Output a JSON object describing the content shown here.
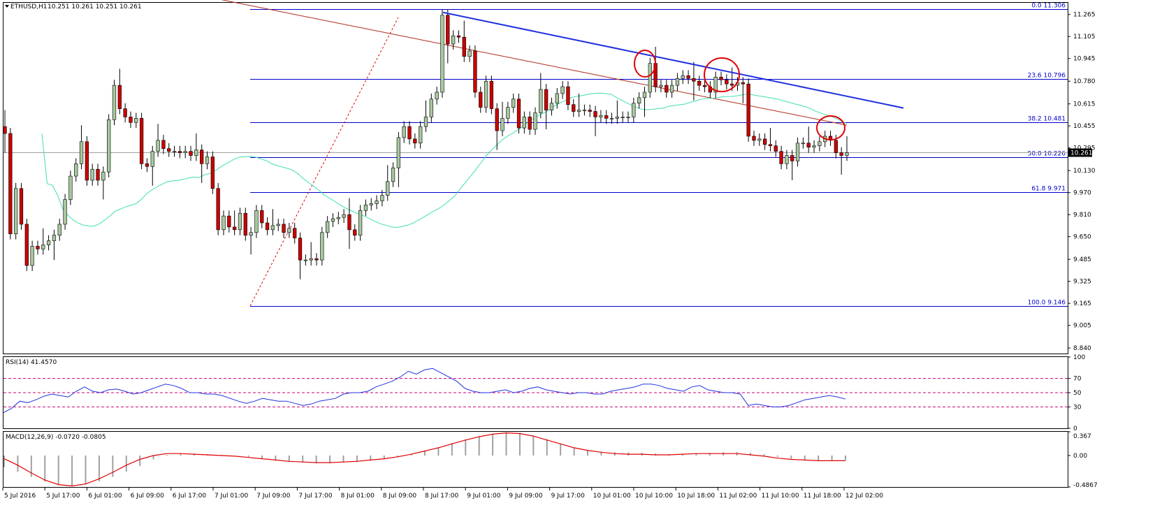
{
  "header": {
    "symbol_label": "ETHUSD,H1",
    "ohlc": "10.251 10.261 10.251 10.261"
  },
  "colors": {
    "bull_candle": "#a8c8a0",
    "bear_candle": "#cc0000",
    "fib_line": "#0000cc",
    "trendline": "#1f2fe0",
    "ma_slow": "#b03020",
    "ma_fast": "#40e0b0",
    "circle": "#e00000",
    "rsi_line": "#2233dd",
    "rsi_level": "#cc0077",
    "macd_hist": "#a0a0a0",
    "macd_signal": "#e00000"
  },
  "chart_data": [
    {
      "type": "candlestick",
      "title": "ETHUSD,H1",
      "timeframe": "H1",
      "last_price": "10.261",
      "ylim": [
        8.8,
        11.35
      ],
      "y_ticks": [
        "11.265",
        "11.105",
        "10.945",
        "10.780",
        "10.615",
        "10.455",
        "10.295",
        "10.130",
        "9.970",
        "9.810",
        "9.650",
        "9.485",
        "9.325",
        "9.165",
        "9.005",
        "8.840"
      ],
      "x_ticks": [
        "5 Jul 2016",
        "5 Jul 17:00",
        "6 Jul 01:00",
        "6 Jul 09:00",
        "6 Jul 17:00",
        "7 Jul 01:00",
        "7 Jul 09:00",
        "7 Jul 17:00",
        "8 Jul 01:00",
        "8 Jul 09:00",
        "8 Jul 17:00",
        "9 Jul 01:00",
        "9 Jul 09:00",
        "9 Jul 17:00",
        "10 Jul 01:00",
        "10 Jul 10:00",
        "10 Jul 18:00",
        "11 Jul 02:00",
        "11 Jul 10:00",
        "11 Jul 18:00",
        "12 Jul 02:00"
      ],
      "fibonacci": [
        {
          "label": "0.0  11.306",
          "value": 11.306
        },
        {
          "label": "23.6  10.796",
          "value": 10.796
        },
        {
          "label": "38.2  10.481",
          "value": 10.481
        },
        {
          "label": "50.0  10.226",
          "value": 10.226
        },
        {
          "label": "61.8  9.971",
          "value": 9.971
        },
        {
          "label": "100.0  9.146",
          "value": 9.146
        }
      ],
      "closes": [
        10.4,
        9.67,
        10.0,
        9.74,
        9.44,
        9.58,
        9.56,
        9.59,
        9.62,
        9.66,
        9.74,
        9.92,
        10.09,
        10.18,
        10.34,
        10.06,
        10.14,
        10.06,
        10.12,
        10.5,
        10.75,
        10.58,
        10.52,
        10.48,
        10.51,
        10.18,
        10.16,
        10.27,
        10.35,
        10.29,
        10.27,
        10.27,
        10.26,
        10.27,
        10.24,
        10.28,
        10.18,
        10.23,
        10.0,
        9.7,
        9.8,
        9.72,
        9.7,
        9.82,
        9.66,
        9.68,
        9.84,
        9.75,
        9.7,
        9.73,
        9.74,
        9.68,
        9.71,
        9.64,
        9.48,
        9.48,
        9.49,
        9.48,
        9.68,
        9.76,
        9.78,
        9.79,
        9.81,
        9.7,
        9.66,
        9.84,
        9.88,
        9.89,
        9.91,
        9.95,
        10.05,
        10.15,
        10.37,
        10.45,
        10.36,
        10.33,
        10.45,
        10.52,
        10.65,
        10.7,
        11.26,
        11.05,
        11.11,
        11.1,
        10.96,
        11.0,
        10.7,
        10.59,
        10.78,
        10.58,
        10.42,
        10.51,
        10.59,
        10.65,
        10.44,
        10.52,
        10.43,
        10.55,
        10.72,
        10.57,
        10.62,
        10.69,
        10.74,
        10.61,
        10.56,
        10.57,
        10.57,
        10.56,
        10.52,
        10.53,
        10.51,
        10.51,
        10.52,
        10.52,
        10.52,
        10.62,
        10.66,
        10.7,
        10.91,
        10.74,
        10.75,
        10.7,
        10.75,
        10.8,
        10.82,
        10.8,
        10.78,
        10.75,
        10.74,
        10.7,
        10.81,
        10.79,
        10.76,
        10.75,
        10.77,
        10.76,
        10.38,
        10.35,
        10.36,
        10.32,
        10.31,
        10.27,
        10.18,
        10.24,
        10.2,
        10.33,
        10.33,
        10.3,
        10.31,
        10.34,
        10.38,
        10.35,
        10.26,
        10.24,
        10.26
      ]
    },
    {
      "type": "line",
      "title": "RSI(14) 41.4570",
      "series": [
        {
          "name": "RSI(14)",
          "values": [
            22,
            28,
            38,
            36,
            40,
            45,
            48,
            46,
            44,
            52,
            58,
            52,
            50,
            54,
            55,
            52,
            48,
            50,
            54,
            58,
            62,
            60,
            56,
            50,
            50,
            48,
            48,
            46,
            42,
            38,
            35,
            38,
            42,
            40,
            38,
            38,
            35,
            32,
            34,
            38,
            40,
            42,
            48,
            50,
            50,
            52,
            58,
            62,
            66,
            72,
            80,
            76,
            82,
            84,
            78,
            72,
            66,
            56,
            52,
            50,
            50,
            52,
            54,
            50,
            52,
            56,
            58,
            54,
            52,
            50,
            48,
            50,
            50,
            48,
            48,
            52,
            54,
            56,
            58,
            62,
            62,
            60,
            56,
            54,
            52,
            58,
            60,
            54,
            52,
            50,
            50,
            48,
            32,
            34,
            32,
            30,
            30,
            32,
            36,
            40,
            42,
            44,
            46,
            44,
            41
          ]
        }
      ],
      "ylim": [
        0,
        100
      ],
      "levels": [
        70,
        50,
        30
      ],
      "y_ticks": [
        "100",
        "70",
        "50",
        "30",
        "0"
      ]
    },
    {
      "type": "bar",
      "title": "MACD(12,26,9) -0.0720 -0.0805",
      "series": [
        {
          "name": "MACD",
          "values": [
            -0.18,
            -0.25,
            -0.33,
            -0.4,
            -0.45,
            -0.47,
            -0.45,
            -0.4,
            -0.33,
            -0.25,
            -0.16,
            -0.06,
            0.01,
            0.03,
            0.03,
            0.02,
            0.01,
            0.0,
            -0.02,
            -0.05,
            -0.08,
            -0.1,
            -0.11,
            -0.12,
            -0.12,
            -0.11,
            -0.1,
            -0.08,
            -0.05,
            -0.02,
            0.02,
            0.07,
            0.13,
            0.19,
            0.25,
            0.3,
            0.34,
            0.36,
            0.35,
            0.31,
            0.25,
            0.18,
            0.12,
            0.08,
            0.06,
            0.05,
            0.05,
            0.04,
            0.03,
            0.02,
            0.02,
            0.03,
            0.04,
            0.05,
            0.05,
            0.04,
            0.02,
            -0.02,
            -0.05,
            -0.07,
            -0.08,
            -0.08,
            -0.07
          ]
        },
        {
          "name": "Signal",
          "values": [
            -0.05,
            -0.15,
            -0.27,
            -0.38,
            -0.45,
            -0.47,
            -0.44,
            -0.36,
            -0.26,
            -0.15,
            -0.06,
            0.0,
            0.03,
            0.03,
            0.02,
            0.01,
            0.0,
            -0.01,
            -0.03,
            -0.05,
            -0.07,
            -0.09,
            -0.1,
            -0.11,
            -0.11,
            -0.1,
            -0.09,
            -0.07,
            -0.05,
            -0.02,
            0.02,
            0.07,
            0.12,
            0.18,
            0.24,
            0.29,
            0.33,
            0.35,
            0.34,
            0.3,
            0.24,
            0.18,
            0.12,
            0.08,
            0.05,
            0.03,
            0.02,
            0.02,
            0.01,
            0.01,
            0.02,
            0.03,
            0.03,
            0.03,
            0.03,
            0.01,
            -0.01,
            -0.04,
            -0.06,
            -0.07,
            -0.08,
            -0.08,
            -0.08
          ]
        }
      ],
      "ylim": [
        -0.4867,
        0.367
      ],
      "y_ticks": [
        "0.367",
        "0.00",
        "-0.4867"
      ]
    }
  ]
}
